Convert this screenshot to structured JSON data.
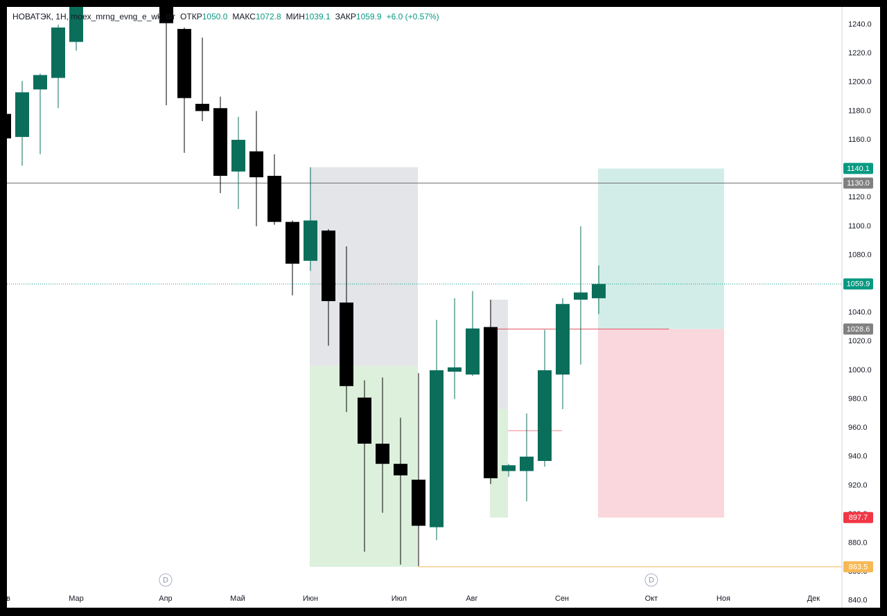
{
  "header": {
    "symbol": "НОВАТЭК, 1Н, moex_mrng_evng_e_wk_dlr",
    "ohlc": [
      {
        "key": "ОТКР",
        "value": "1050.0"
      },
      {
        "key": "МАКС",
        "value": "1072.8"
      },
      {
        "key": "МИН",
        "value": "1039.1"
      },
      {
        "key": "ЗАКР",
        "value": "1059.9"
      }
    ],
    "change": "+6.0 (+0.57%)"
  },
  "chart_data": {
    "type": "candlestick",
    "x": [
      0,
      1,
      2,
      3,
      4,
      9,
      10,
      11,
      12,
      13,
      14,
      15,
      16,
      17,
      18,
      19,
      20,
      21,
      22,
      23,
      24,
      25,
      26,
      27,
      28,
      29,
      30,
      31,
      32,
      33
    ],
    "open": [
      1178,
      1162,
      1195,
      1203,
      1228,
      1260,
      1237,
      1185,
      1182,
      1138,
      1152,
      1135,
      1103,
      1076,
      1097,
      1047,
      981,
      949,
      935,
      924,
      891,
      999,
      997,
      1030,
      930,
      930,
      937,
      997,
      1049,
      1050.0
    ],
    "high": [
      1180,
      1201,
      1206,
      1240,
      1260,
      1265,
      1238,
      1231,
      1190,
      1176,
      1180,
      1150,
      1104,
      1141,
      1098,
      1086,
      993,
      995,
      967,
      998,
      1035,
      1050,
      1055,
      1049,
      935,
      970,
      1028,
      1050,
      1100,
      1072.8
    ],
    "low": [
      1160,
      1142,
      1150,
      1182,
      1222,
      1184,
      1151,
      1173,
      1123,
      1112,
      1100,
      1101,
      1052,
      1069,
      1017,
      971,
      874,
      901,
      865,
      864,
      882,
      980,
      996,
      921,
      926,
      909,
      933,
      973,
      1004,
      1039.1
    ],
    "close": [
      1161,
      1193,
      1205,
      1238,
      1255,
      1241,
      1189,
      1180,
      1135,
      1160,
      1134,
      1103,
      1074,
      1104,
      1048,
      989,
      949,
      935,
      927,
      892,
      1000,
      1002,
      1029,
      925,
      934,
      940,
      1000,
      1046,
      1054,
      1059.9
    ],
    "up_color": "#0b6e5b",
    "down_color": "#000000",
    "xlim": [
      0.154,
      46.5
    ],
    "xticks": [
      {
        "value": 0.23,
        "label": "в"
      },
      {
        "value": 4,
        "label": "Мар"
      },
      {
        "value": 8.96,
        "label": "Апр"
      },
      {
        "value": 12.96,
        "label": "Май"
      },
      {
        "value": 17,
        "label": "Июн"
      },
      {
        "value": 21.92,
        "label": "Июл"
      },
      {
        "value": 25.96,
        "label": "Авг"
      },
      {
        "value": 30.96,
        "label": "Сен"
      },
      {
        "value": 35.92,
        "label": "Окт"
      },
      {
        "value": 39.92,
        "label": "Ноя"
      },
      {
        "value": 44.92,
        "label": "Дек"
      }
    ],
    "ylim": [
      835.1,
      1252.3
    ],
    "yticks": [
      {
        "value": 840,
        "label": "840.0"
      },
      {
        "value": 860,
        "label": "860.0"
      },
      {
        "value": 880,
        "label": "880.0"
      },
      {
        "value": 900,
        "label": "900.0"
      },
      {
        "value": 920,
        "label": "920.0"
      },
      {
        "value": 940,
        "label": "940.0"
      },
      {
        "value": 960,
        "label": "960.0"
      },
      {
        "value": 980,
        "label": "980.0"
      },
      {
        "value": 1000,
        "label": "1000.0"
      },
      {
        "value": 1020,
        "label": "1020.0"
      },
      {
        "value": 1040,
        "label": "1040.0"
      },
      {
        "value": 1060,
        "label": "1060.0"
      },
      {
        "value": 1080,
        "label": "1080.0"
      },
      {
        "value": 1100,
        "label": "1100.0"
      },
      {
        "value": 1120,
        "label": "1120.0"
      },
      {
        "value": 1140,
        "label": "1140.0"
      },
      {
        "value": 1160,
        "label": "1160.0"
      },
      {
        "value": 1180,
        "label": "1180.0"
      },
      {
        "value": 1200,
        "label": "1200.0"
      },
      {
        "value": 1220,
        "label": "1220.0"
      },
      {
        "value": 1240,
        "label": "1240.0"
      }
    ],
    "boxes": [
      {
        "x": [
          16.96,
          22.96
        ],
        "y": [
          1003,
          1141
        ],
        "color": "#e3e5e8"
      },
      {
        "x": [
          16.96,
          22.96
        ],
        "y": [
          863.5,
          1003
        ],
        "color": "#dcf0dc"
      },
      {
        "x": [
          26.96,
          27.96
        ],
        "y": [
          973,
          1049
        ],
        "color": "#e3e5e8"
      },
      {
        "x": [
          26.96,
          27.96
        ],
        "y": [
          897.7,
          973
        ],
        "color": "#dcf0dc"
      },
      {
        "x": [
          32.96,
          39.96
        ],
        "y": [
          1028.6,
          1140.1
        ],
        "color": "#d2ede8"
      },
      {
        "x": [
          32.96,
          39.96
        ],
        "y": [
          897.7,
          1028.6
        ],
        "color": "#fad7dc"
      }
    ],
    "lines": [
      {
        "value": 1130.0,
        "x": [
          0.154,
          46.5
        ],
        "color": "#707070",
        "dash": false
      },
      {
        "value": 1059.9,
        "x": [
          0.154,
          46.5
        ],
        "color": "#089981",
        "dash": true
      },
      {
        "value": 1028.6,
        "x": [
          27.3,
          36.9
        ],
        "color": "#e05060",
        "dash": false
      },
      {
        "value": 958,
        "x": [
          27.96,
          30.96
        ],
        "color": "#f08090",
        "dash": false
      },
      {
        "value": 863.5,
        "x": [
          22.96,
          46.5
        ],
        "color": "#f7b955",
        "dash": false
      }
    ],
    "price_labels": [
      {
        "value": 1140.1,
        "label": "1140.1",
        "color": "#089981"
      },
      {
        "value": 1130.0,
        "label": "1130.0",
        "color": "#808080"
      },
      {
        "value": 1059.9,
        "label": "1059.9",
        "color": "#089981"
      },
      {
        "value": 1028.6,
        "label": "1028.6",
        "color": "#808080"
      },
      {
        "value": 897.7,
        "label": "897.7",
        "color": "#f23645"
      },
      {
        "value": 863.5,
        "label": "863.5",
        "color": "#f7b955"
      }
    ],
    "markers": [
      {
        "x": 8.96,
        "label": "D"
      },
      {
        "x": 35.92,
        "label": "D"
      }
    ]
  }
}
